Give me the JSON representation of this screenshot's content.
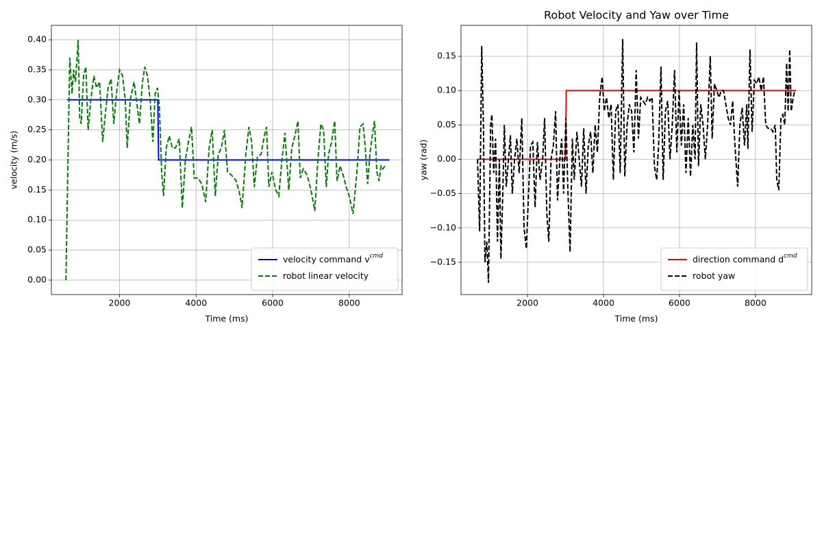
{
  "chart_data": [
    {
      "type": "line",
      "xlabel": "Time (ms)",
      "ylabel": "velocity (m/s)",
      "xlim": [
        220,
        9380
      ],
      "ylim": [
        -0.024,
        0.424
      ],
      "xticks": [
        2000,
        4000,
        6000,
        8000
      ],
      "yticks": [
        {
          "value": 0,
          "label": "0.00"
        },
        {
          "value": 0.05,
          "label": "0.05"
        },
        {
          "value": 0.1,
          "label": "0.10"
        },
        {
          "value": 0.15,
          "label": "0.15"
        },
        {
          "value": 0.2,
          "label": "0.20"
        },
        {
          "value": 0.25,
          "label": "0.25"
        },
        {
          "value": 0.3,
          "label": "0.30"
        },
        {
          "value": 0.35,
          "label": "0.35"
        },
        {
          "value": 0.4,
          "label": "0.40"
        }
      ],
      "grid": true,
      "legend": "lower right",
      "series": [
        {
          "name": "velocity command v",
          "name_superscript": "cmd",
          "color": "#0000ff",
          "linestyle": "solid",
          "x": [
            630,
            3000,
            3020,
            9050
          ],
          "values": [
            0.3,
            0.3,
            0.2,
            0.2
          ]
        },
        {
          "name": "robot linear velocity",
          "color": "#008000",
          "linestyle": "dashed",
          "x": [
            600,
            700,
            760,
            800,
            850,
            920,
            960,
            1000,
            1060,
            1120,
            1180,
            1250,
            1330,
            1400,
            1480,
            1560,
            1620,
            1700,
            1780,
            1850,
            1920,
            2000,
            2080,
            2150,
            2200,
            2280,
            2380,
            2460,
            2520,
            2600,
            2660,
            2730,
            2800,
            2870,
            2930,
            2990,
            3040,
            3100,
            3150,
            3220,
            3300,
            3380,
            3460,
            3560,
            3640,
            3720,
            3800,
            3880,
            3950,
            4050,
            4150,
            4250,
            4340,
            4420,
            4500,
            4580,
            4660,
            4740,
            4820,
            4920,
            5050,
            5150,
            5200,
            5300,
            5380,
            5450,
            5520,
            5600,
            5700,
            5780,
            5840,
            5900,
            5980,
            6080,
            6160,
            6240,
            6320,
            6420,
            6500,
            6580,
            6660,
            6720,
            6800,
            6900,
            7000,
            7100,
            7180,
            7260,
            7330,
            7400,
            7460,
            7540,
            7620,
            7680,
            7760,
            7840,
            7920,
            8000,
            8100,
            8200,
            8280,
            8360,
            8420,
            8480,
            8540,
            8600,
            8660,
            8720,
            8780,
            8830,
            8880,
            8930
          ],
          "values": [
            0.0,
            0.37,
            0.31,
            0.35,
            0.33,
            0.4,
            0.27,
            0.26,
            0.34,
            0.355,
            0.25,
            0.3,
            0.34,
            0.32,
            0.33,
            0.23,
            0.27,
            0.32,
            0.335,
            0.26,
            0.31,
            0.35,
            0.34,
            0.3,
            0.22,
            0.3,
            0.33,
            0.29,
            0.26,
            0.33,
            0.355,
            0.34,
            0.3,
            0.23,
            0.31,
            0.32,
            0.29,
            0.18,
            0.14,
            0.22,
            0.24,
            0.22,
            0.22,
            0.235,
            0.12,
            0.2,
            0.23,
            0.255,
            0.17,
            0.17,
            0.16,
            0.13,
            0.22,
            0.25,
            0.14,
            0.21,
            0.22,
            0.25,
            0.18,
            0.175,
            0.165,
            0.14,
            0.12,
            0.21,
            0.255,
            0.23,
            0.155,
            0.205,
            0.21,
            0.24,
            0.255,
            0.155,
            0.18,
            0.15,
            0.14,
            0.2,
            0.245,
            0.15,
            0.22,
            0.24,
            0.265,
            0.17,
            0.185,
            0.175,
            0.15,
            0.115,
            0.2,
            0.26,
            0.25,
            0.155,
            0.21,
            0.23,
            0.265,
            0.165,
            0.19,
            0.175,
            0.155,
            0.14,
            0.11,
            0.18,
            0.255,
            0.26,
            0.22,
            0.16,
            0.21,
            0.24,
            0.265,
            0.18,
            0.165,
            0.19,
            0.185,
            0.19
          ]
        }
      ]
    },
    {
      "type": "line",
      "title": "Robot Velocity and Yaw over Time",
      "xlabel": "Time (ms)",
      "ylabel": "yaw (rad)",
      "xlim": [
        250,
        9480
      ],
      "ylim": [
        -0.197,
        0.195
      ],
      "xticks": [
        2000,
        4000,
        6000,
        8000
      ],
      "yticks": [
        {
          "value": -0.15,
          "label": "−0.15"
        },
        {
          "value": -0.1,
          "label": "−0.10"
        },
        {
          "value": -0.05,
          "label": "−0.05"
        },
        {
          "value": 0,
          "label": "0.00"
        },
        {
          "value": 0.05,
          "label": "0.05"
        },
        {
          "value": 0.1,
          "label": "0.10"
        },
        {
          "value": 0.15,
          "label": "0.15"
        }
      ],
      "grid": true,
      "legend": "lower right",
      "series": [
        {
          "name": "direction command d",
          "name_superscript": "cmd",
          "color": "#ff0000",
          "linestyle": "solid",
          "x": [
            685,
            3000,
            3020,
            9063
          ],
          "values": [
            0.0,
            0.0,
            0.1,
            0.1
          ]
        },
        {
          "name": "robot yaw",
          "color": "#000000",
          "linestyle": "dashed",
          "x": [
            685,
            740,
            795,
            840,
            880,
            930,
            973,
            1030,
            1063,
            1110,
            1160,
            1210,
            1260,
            1300,
            1350,
            1390,
            1440,
            1500,
            1550,
            1600,
            1660,
            1720,
            1780,
            1850,
            1910,
            1970,
            2020,
            2080,
            2140,
            2200,
            2260,
            2330,
            2400,
            2450,
            2510,
            2560,
            2620,
            2680,
            2740,
            2790,
            2850,
            2900,
            2950,
            3010,
            3060,
            3120,
            3180,
            3230,
            3300,
            3360,
            3420,
            3480,
            3540,
            3600,
            3660,
            3720,
            3780,
            3840,
            3900,
            3964,
            4020,
            4080,
            4140,
            4200,
            4260,
            4320,
            4380,
            4440,
            4505,
            4560,
            4620,
            4680,
            4740,
            4800,
            4860,
            4920,
            4980,
            5040,
            5100,
            5160,
            5220,
            5280,
            5340,
            5400,
            5450,
            5513,
            5570,
            5630,
            5690,
            5750,
            5810,
            5870,
            5930,
            5990,
            6050,
            6110,
            6170,
            6230,
            6290,
            6350,
            6410,
            6450,
            6500,
            6560,
            6620,
            6680,
            6740,
            6810,
            6860,
            6920,
            6980,
            7040,
            7100,
            7160,
            7220,
            7280,
            7340,
            7400,
            7460,
            7531,
            7590,
            7650,
            7710,
            7770,
            7800,
            7855,
            7910,
            7970,
            8030,
            8090,
            8150,
            8210,
            8270,
            8330,
            8400,
            8460,
            8520,
            8560,
            8613,
            8670,
            8720,
            8770,
            8820,
            8860,
            8901,
            8940,
            8980,
            9030,
            9063
          ],
          "values": [
            0.0,
            -0.105,
            0.165,
            0.05,
            -0.15,
            -0.12,
            -0.18,
            0.05,
            0.065,
            -0.02,
            0.03,
            -0.12,
            0.0,
            -0.145,
            -0.05,
            0.05,
            -0.04,
            0.0,
            0.035,
            -0.05,
            0.0,
            0.03,
            -0.02,
            0.06,
            -0.1,
            -0.13,
            -0.06,
            0.02,
            0.025,
            -0.07,
            0.025,
            -0.03,
            0.0,
            0.06,
            -0.08,
            -0.12,
            0.0,
            0.02,
            0.07,
            -0.06,
            0.0,
            0.03,
            -0.05,
            0.06,
            -0.04,
            -0.135,
            0.03,
            -0.03,
            0.04,
            0.0,
            -0.04,
            0.045,
            -0.05,
            0.02,
            0.04,
            -0.02,
            0.05,
            0.01,
            0.09,
            0.12,
            0.07,
            0.09,
            0.06,
            0.08,
            -0.03,
            0.07,
            0.08,
            -0.02,
            0.175,
            -0.025,
            0.05,
            0.08,
            0.07,
            0.01,
            0.13,
            0.03,
            0.09,
            0.085,
            0.08,
            0.09,
            0.085,
            0.09,
            -0.01,
            -0.03,
            0.02,
            0.135,
            -0.03,
            0.07,
            0.085,
            0.0,
            0.05,
            0.13,
            0.01,
            0.1,
            0.02,
            0.08,
            -0.02,
            0.06,
            -0.025,
            0.05,
            0.0,
            0.17,
            -0.01,
            0.08,
            0.05,
            0.0,
            0.05,
            0.15,
            0.03,
            0.11,
            0.1,
            0.09,
            0.1,
            0.1,
            0.08,
            0.06,
            0.05,
            0.085,
            0.02,
            -0.04,
            0.05,
            0.075,
            0.02,
            0.08,
            0.015,
            0.16,
            0.04,
            0.115,
            0.11,
            0.12,
            0.1,
            0.12,
            0.05,
            0.045,
            0.045,
            0.04,
            0.05,
            -0.03,
            -0.045,
            0.06,
            0.065,
            0.05,
            0.14,
            0.07,
            0.16,
            0.07,
            0.085,
            0.1,
            0.1
          ]
        }
      ]
    }
  ]
}
